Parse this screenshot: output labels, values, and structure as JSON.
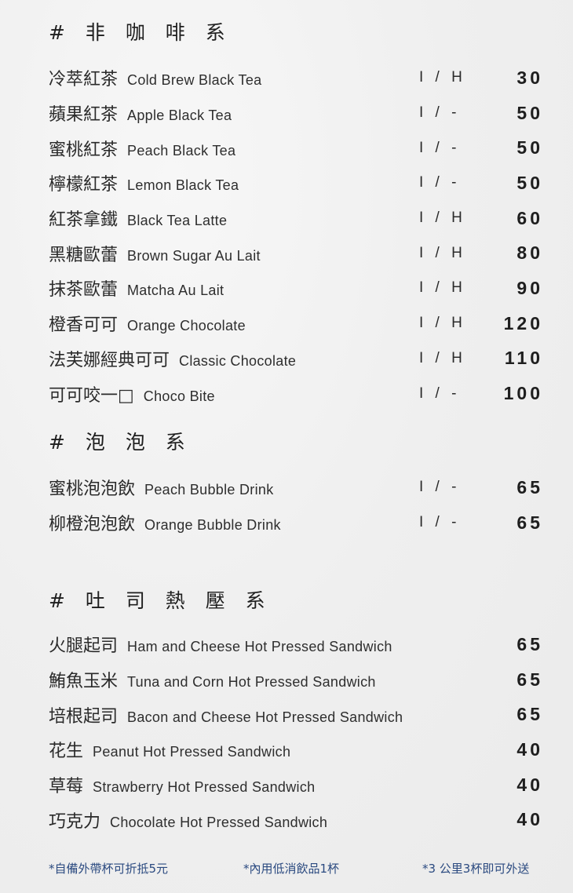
{
  "sections": [
    {
      "title": "# 非 咖 啡 系",
      "items": [
        {
          "zh": "冷萃紅茶",
          "en": "Cold Brew Black Tea",
          "temp": "I / H",
          "price": "30"
        },
        {
          "zh": "蘋果紅茶",
          "en": "Apple Black Tea",
          "temp": "I / -",
          "price": "50"
        },
        {
          "zh": "蜜桃紅茶",
          "en": "Peach Black Tea",
          "temp": "I / -",
          "price": "50"
        },
        {
          "zh": "檸檬紅茶",
          "en": "Lemon Black Tea",
          "temp": "I / -",
          "price": "50"
        },
        {
          "zh": "紅茶拿鐵",
          "en": "Black Tea Latte",
          "temp": "I / H",
          "price": "60"
        },
        {
          "zh": "黑糖歐蕾",
          "en": "Brown Sugar Au Lait",
          "temp": "I / H",
          "price": "80"
        },
        {
          "zh": "抹茶歐蕾",
          "en": "Matcha Au Lait",
          "temp": "I / H",
          "price": "90"
        },
        {
          "zh": "橙香可可",
          "en": "Orange Chocolate",
          "temp": "I / H",
          "price": "120"
        },
        {
          "zh": "法芙娜經典可可",
          "en": "Classic Chocolate",
          "temp": "I / H",
          "price": "110"
        },
        {
          "zh": "可可咬一□",
          "en": "Choco Bite",
          "temp": "I / -",
          "price": "100"
        }
      ]
    },
    {
      "title": "# 泡 泡 系",
      "items": [
        {
          "zh": "蜜桃泡泡飲",
          "en": "Peach Bubble Drink",
          "temp": "I / -",
          "price": "65"
        },
        {
          "zh": "柳橙泡泡飲",
          "en": "Orange Bubble Drink",
          "temp": "I / -",
          "price": "65"
        }
      ]
    },
    {
      "title": "# 吐 司 熱 壓 系",
      "items": [
        {
          "zh": "火腿起司",
          "en": "Ham and Cheese Hot Pressed Sandwich",
          "temp": "",
          "price": "65"
        },
        {
          "zh": "鮪魚玉米",
          "en": "Tuna and Corn Hot Pressed Sandwich",
          "temp": "",
          "price": "65"
        },
        {
          "zh": "培根起司",
          "en": "Bacon and Cheese Hot Pressed Sandwich",
          "temp": "",
          "price": "65"
        },
        {
          "zh": "花生",
          "en": "Peanut Hot Pressed Sandwich",
          "temp": "",
          "price": "40"
        },
        {
          "zh": "草莓",
          "en": "Strawberry Hot Pressed Sandwich",
          "temp": "",
          "price": "40"
        },
        {
          "zh": "巧克力",
          "en": "Chocolate Hot Pressed Sandwich",
          "temp": "",
          "price": "40"
        }
      ]
    }
  ],
  "footer": [
    "*自備外帶杯可折抵5元",
    "*內用低消飲品1杯",
    "*3 公里3杯即可外送"
  ],
  "colors": {
    "text": "#262626",
    "footer": "#2b4a80",
    "background": "#efefef"
  }
}
